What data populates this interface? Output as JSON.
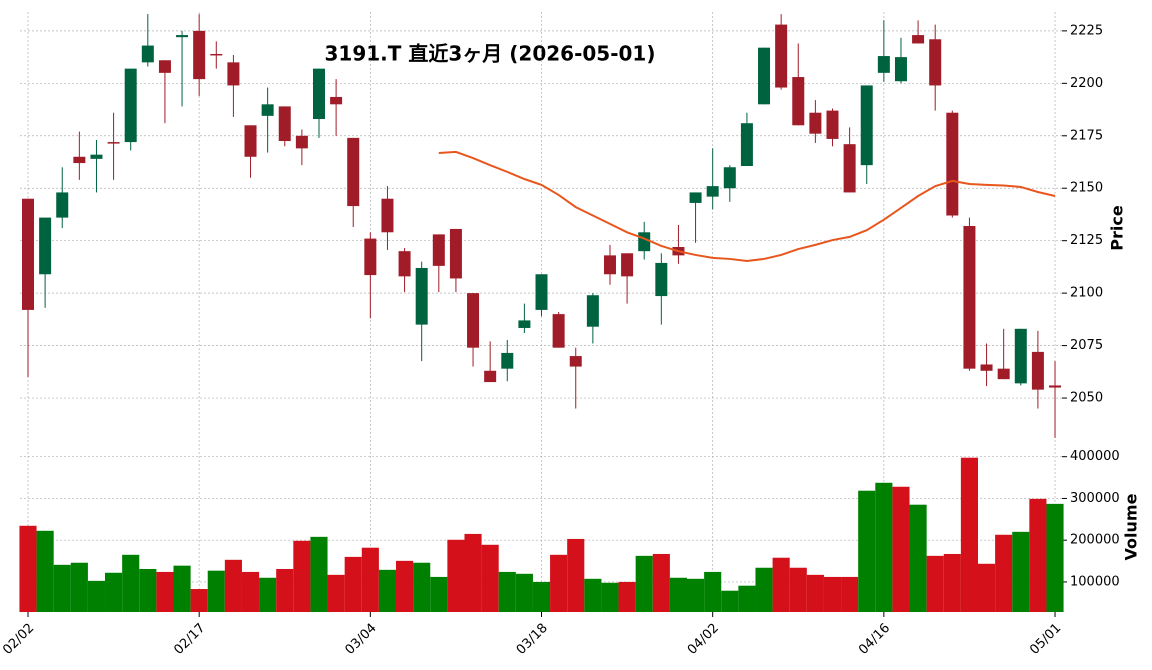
{
  "chart_data": {
    "type": "candlestick",
    "title": "3191.T 直近3ヶ月 (2026-05-01)",
    "ylabel": "Price",
    "categories": [
      "02/02",
      null,
      null,
      null,
      null,
      null,
      null,
      null,
      null,
      null,
      "02/17",
      null,
      null,
      null,
      null,
      null,
      null,
      null,
      null,
      null,
      "03/04",
      null,
      null,
      null,
      null,
      null,
      null,
      null,
      null,
      null,
      "03/18",
      null,
      null,
      null,
      null,
      null,
      null,
      null,
      null,
      null,
      "04/02",
      null,
      null,
      null,
      null,
      null,
      null,
      null,
      null,
      null,
      "04/16",
      null,
      null,
      null,
      null,
      null,
      null,
      null,
      null,
      null,
      "05/01"
    ],
    "open": [
      2145,
      2109,
      2136,
      2165,
      2164,
      2172,
      2172,
      2210,
      2211,
      2222,
      2225,
      2214,
      2210,
      2180,
      2184.5,
      2189,
      2175,
      2183,
      2193.5,
      2174,
      2126,
      2145,
      2120,
      2085,
      2128,
      2130.6,
      2100,
      2063,
      2064,
      2083.4,
      2092,
      2090,
      2070,
      2084,
      2118,
      2119,
      2120,
      2098.6,
      2122,
      2143,
      2146,
      2150,
      2160.6,
      2190,
      2228,
      2203,
      2186,
      2187,
      2171,
      2161,
      2205,
      2201,
      2223,
      2221,
      2186,
      2132,
      2066,
      2064,
      2057,
      2072,
      2056
    ],
    "high": [
      2145,
      2136,
      2160,
      2177,
      2173,
      2186,
      2207,
      2233,
      2211,
      2225,
      2233,
      2220,
      2213.5,
      2180,
      2198,
      2189,
      2178,
      2207,
      2202,
      2174,
      2129,
      2151,
      2121.5,
      2115,
      2128,
      2130.6,
      2100,
      2077,
      2077.7,
      2095,
      2109,
      2091,
      2074,
      2100,
      2123,
      2119,
      2134,
      2119,
      2132.5,
      2148,
      2169,
      2161,
      2186,
      2217,
      2233,
      2219,
      2192,
      2188,
      2179,
      2199,
      2230,
      2221.7,
      2230,
      2228,
      2187,
      2136,
      2076,
      2083,
      2083,
      2082,
      2067.6
    ],
    "low": [
      2060,
      2093,
      2131,
      2154,
      2148,
      2154,
      2168,
      2208,
      2181,
      2189,
      2194,
      2207,
      2184,
      2155,
      2167,
      2170,
      2161,
      2174,
      2175,
      2131.5,
      2088,
      2120.6,
      2100.5,
      2067.6,
      2100.5,
      2100.5,
      2065,
      2057.6,
      2058,
      2081,
      2089,
      2074,
      2045,
      2076,
      2104,
      2095,
      2116,
      2085,
      2114,
      2124,
      2140,
      2143.5,
      2160.6,
      2190,
      2197,
      2180,
      2171.6,
      2170,
      2148,
      2152,
      2200.7,
      2200,
      2219,
      2187,
      2136,
      2063,
      2055.7,
      2059,
      2056,
      2045,
      2031
    ],
    "close": [
      2092,
      2136,
      2148,
      2162,
      2166,
      2172,
      2207,
      2218,
      2205,
      2223,
      2202,
      2213.5,
      2199,
      2165,
      2190,
      2172.5,
      2169,
      2207,
      2190,
      2141.5,
      2108.6,
      2129,
      2108,
      2112,
      2113,
      2107,
      2074,
      2057.6,
      2071.5,
      2087,
      2109,
      2074,
      2065,
      2099,
      2109,
      2108,
      2129,
      2114.4,
      2118,
      2148,
      2151,
      2160,
      2181,
      2217,
      2198,
      2180,
      2176,
      2173.5,
      2148,
      2199,
      2213,
      2212.5,
      2219,
      2199,
      2137,
      2064,
      2063,
      2059,
      2083,
      2054,
      2055
    ],
    "up_color": "#006340",
    "down_color": "#a01c28",
    "ylim": [
      2030,
      2234
    ],
    "yticks": [
      2050,
      2075,
      2100,
      2125,
      2150,
      2175,
      2200,
      2225
    ],
    "grid": true,
    "moving_average": {
      "color": "#e8561e",
      "values": [
        null,
        null,
        null,
        null,
        null,
        null,
        null,
        null,
        null,
        null,
        null,
        null,
        null,
        null,
        null,
        null,
        null,
        null,
        null,
        null,
        null,
        null,
        null,
        null,
        2166.8,
        2167.3,
        2164.4,
        2161,
        2157.8,
        2154.4,
        2151.6,
        2146.8,
        2141,
        2137,
        2133,
        2129,
        2126,
        2122.5,
        2120,
        2118.2,
        2116.8,
        2116.3,
        2115.3,
        2116.3,
        2118.2,
        2121,
        2123,
        2125.3,
        2126.8,
        2130,
        2135,
        2140.6,
        2146.3,
        2151,
        2153.5,
        2152,
        2151.6,
        2151.3,
        2150.6,
        2148.2,
        2146.3
      ]
    },
    "volume": {
      "ylabel": "Volume",
      "up_color": "#008000",
      "down_color": "#d4101a",
      "ylim": [
        28000,
        428000
      ],
      "yticks": [
        100000,
        200000,
        300000,
        400000
      ],
      "values": [
        234500,
        222500,
        141000,
        146000,
        102600,
        122000,
        165000,
        131000,
        124000,
        139000,
        83000,
        127000,
        153000,
        124000,
        110000,
        131000,
        198500,
        208000,
        117000,
        160000,
        182000,
        129000,
        150500,
        146000,
        112000,
        201000,
        215000,
        189000,
        124000,
        119500,
        100000,
        165000,
        203000,
        107500,
        98000,
        100000,
        162500,
        167000,
        110000,
        107500,
        124000,
        79000,
        91000,
        134000,
        158000,
        134000,
        117000,
        112000,
        112000,
        318500,
        337500,
        328000,
        285000,
        162500,
        167000,
        397600,
        143500,
        213000,
        220000,
        299000,
        287000
      ]
    }
  }
}
